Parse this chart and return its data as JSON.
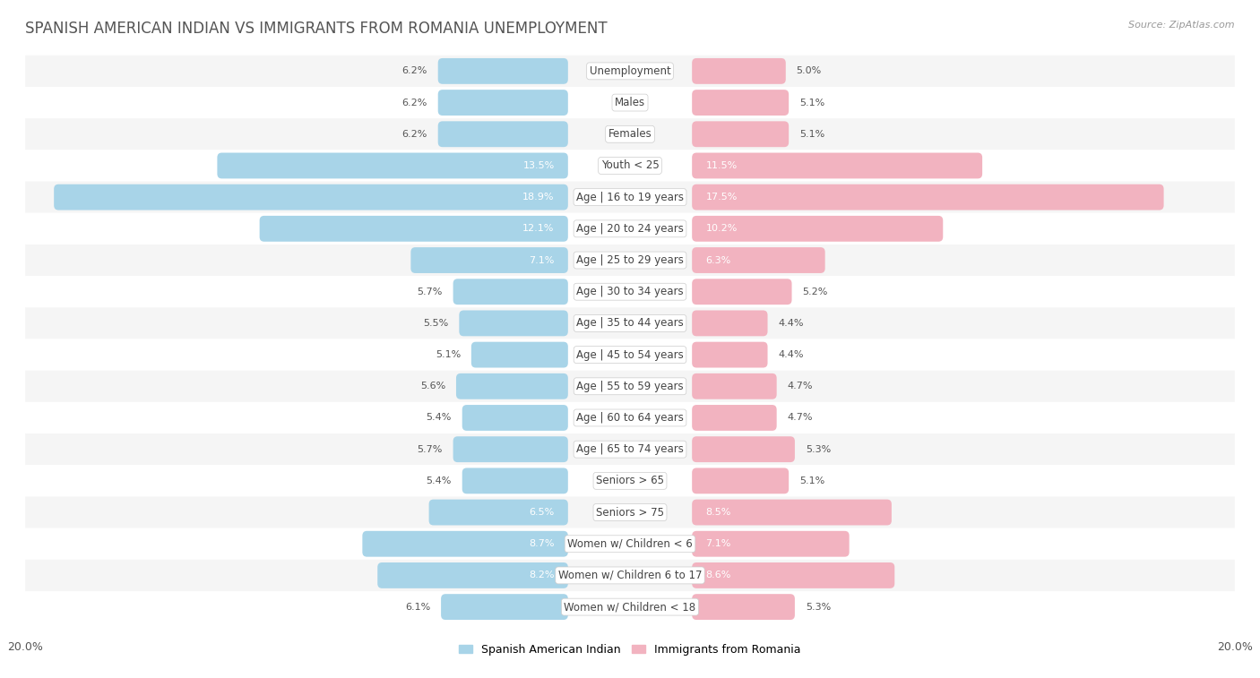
{
  "title": "Spanish American Indian vs Immigrants from Romania Unemployment",
  "source": "Source: ZipAtlas.com",
  "categories": [
    "Unemployment",
    "Males",
    "Females",
    "Youth < 25",
    "Age | 16 to 19 years",
    "Age | 20 to 24 years",
    "Age | 25 to 29 years",
    "Age | 30 to 34 years",
    "Age | 35 to 44 years",
    "Age | 45 to 54 years",
    "Age | 55 to 59 years",
    "Age | 60 to 64 years",
    "Age | 65 to 74 years",
    "Seniors > 65",
    "Seniors > 75",
    "Women w/ Children < 6",
    "Women w/ Children 6 to 17",
    "Women w/ Children < 18"
  ],
  "left_values": [
    6.2,
    6.2,
    6.2,
    13.5,
    18.9,
    12.1,
    7.1,
    5.7,
    5.5,
    5.1,
    5.6,
    5.4,
    5.7,
    5.4,
    6.5,
    8.7,
    8.2,
    6.1
  ],
  "right_values": [
    5.0,
    5.1,
    5.1,
    11.5,
    17.5,
    10.2,
    6.3,
    5.2,
    4.4,
    4.4,
    4.7,
    4.7,
    5.3,
    5.1,
    8.5,
    7.1,
    8.6,
    5.3
  ],
  "left_color": "#a8d4e8",
  "right_color": "#f2b3c0",
  "axis_max": 20.0,
  "bg_color": "#ffffff",
  "row_even_color": "#f5f5f5",
  "row_odd_color": "#ffffff",
  "left_label": "Spanish American Indian",
  "right_label": "Immigrants from Romania",
  "title_fontsize": 12,
  "label_fontsize": 8.5,
  "value_fontsize": 8,
  "title_color": "#555555",
  "source_color": "#999999",
  "text_color": "#555555",
  "value_inside_color": "#ffffff",
  "value_outside_color": "#555555",
  "inside_threshold": 8.0
}
